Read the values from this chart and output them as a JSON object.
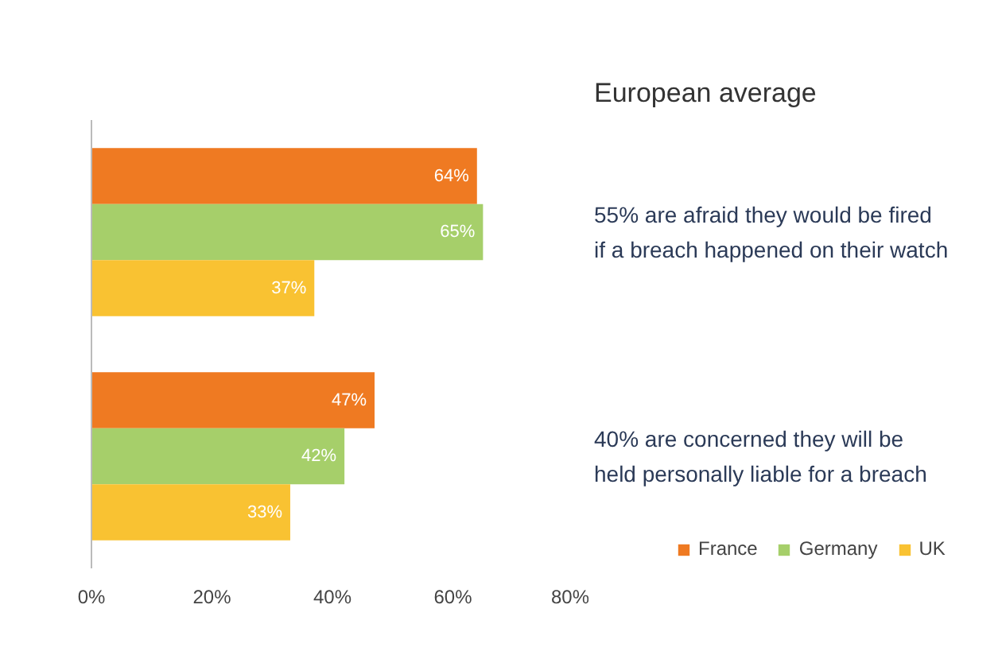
{
  "chart_data": {
    "type": "bar",
    "orientation": "horizontal",
    "title": "European average",
    "categories": [
      null,
      null
    ],
    "series": [
      {
        "name": "France",
        "color": "#ef7a22",
        "values": [
          64,
          47
        ],
        "value_labels": [
          "64%",
          "47%"
        ]
      },
      {
        "name": "Germany",
        "color": "#a6cf6a",
        "values": [
          65,
          42
        ],
        "value_labels": [
          "65%",
          "42%"
        ]
      },
      {
        "name": "UK",
        "color": "#f9c232",
        "values": [
          37,
          33
        ],
        "value_labels": [
          "37%",
          "33%"
        ]
      }
    ],
    "xlim": [
      0,
      80
    ],
    "xticks": [
      {
        "value": 0,
        "label": "0%"
      },
      {
        "value": 20,
        "label": "20%"
      },
      {
        "value": 40,
        "label": "40%"
      },
      {
        "value": 60,
        "label": "60%"
      },
      {
        "value": 80,
        "label": "80%"
      }
    ],
    "annotations": [
      "55% are afraid they would be fired\nif a breach happened on their watch",
      "40% are concerned they will be\nheld personally liable for a breach"
    ],
    "grid": false,
    "legend": "bottom right"
  }
}
